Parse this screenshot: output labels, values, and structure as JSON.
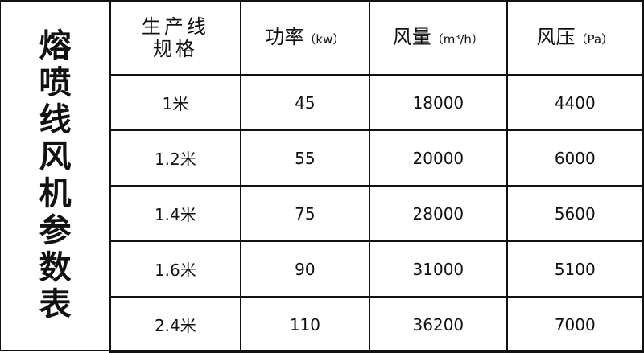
{
  "title": "熔喷线风机参数表",
  "headers": [
    {
      "main": "生产线规格",
      "unit": ""
    },
    {
      "main": "功率",
      "unit": "（kw）"
    },
    {
      "main": "风量",
      "unit": "（m³/h）"
    },
    {
      "main": "风压",
      "unit": "（Pa）"
    }
  ],
  "rows": [
    [
      "1米",
      "45",
      "18000",
      "4400"
    ],
    [
      "1.2米",
      "55",
      "20000",
      "6000"
    ],
    [
      "1.4米",
      "75",
      "28000",
      "5600"
    ],
    [
      "1.6米",
      "90",
      "31000",
      "5100"
    ],
    [
      "2.4米",
      "110",
      "36200",
      "7000"
    ]
  ]
}
